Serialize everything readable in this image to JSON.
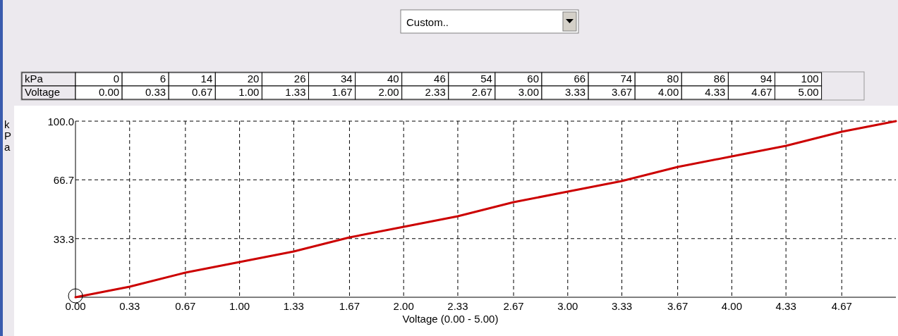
{
  "chart_data": [
    {
      "type": "other",
      "annotations": [
        "Custom..",
        "kPa",
        "0",
        "6",
        "14",
        "20",
        "26",
        "34",
        "40",
        "46",
        "54",
        "60",
        "66",
        "74",
        "80",
        "86",
        "94",
        "100",
        "Voltage",
        "0.00",
        "0.33",
        "0.67",
        "1.00",
        "1.33",
        "1.67",
        "2.00",
        "2.33",
        "2.67",
        "3.00",
        "3.33",
        "3.67",
        "4.00",
        "4.33",
        "4.67",
        "5.00"
      ]
    },
    {
      "type": "line",
      "xlabel": "Voltage (0.00 - 5.00)",
      "ylabel": "kPa",
      "x": [
        0,
        0.33,
        0.67,
        1,
        1.33,
        1.67,
        2,
        2.33,
        2.67,
        3,
        3.33,
        3.67,
        4,
        4.33,
        4.67,
        5
      ],
      "series": [
        {
          "color": "#cc0000",
          "values": [
            0,
            6,
            14,
            20,
            26,
            34,
            40,
            46,
            54,
            60,
            66,
            74,
            80,
            86,
            94,
            100
          ]
        }
      ],
      "xlim": [
        0,
        5
      ],
      "xticks": [
        {
          "value": 0,
          "label": "0.00"
        },
        0.33,
        0.67,
        {
          "value": 1,
          "label": "1.00"
        },
        1.33,
        1.67,
        {
          "value": 2,
          "label": "2.00"
        },
        2.33,
        2.67,
        {
          "value": 3,
          "label": "3.00"
        },
        3.33,
        3.67,
        {
          "value": 4,
          "label": "4.00"
        },
        4.33,
        4.67
      ],
      "ylim": [
        0,
        100
      ],
      "yticks": [
        33.3,
        66.7,
        {
          "value": 100,
          "label": "100.0"
        }
      ],
      "grid": true,
      "marker": "none",
      "line_style": "solid",
      "legend": false
    }
  ]
}
